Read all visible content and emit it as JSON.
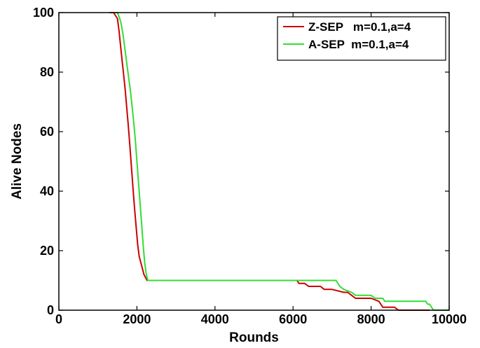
{
  "chart_data": {
    "type": "line",
    "title": "",
    "xlabel": "Rounds",
    "ylabel": "Alive Nodes",
    "xlim": [
      0,
      10000
    ],
    "ylim": [
      0,
      100
    ],
    "xticks": [
      "0",
      "2000",
      "4000",
      "6000",
      "8000",
      "10000"
    ],
    "yticks": [
      "0",
      "20",
      "40",
      "60",
      "80",
      "100"
    ],
    "grid": false,
    "legend_position": "top-right",
    "series": [
      {
        "name": "Z-SEP   m=0.1,a=4",
        "color": "#cc0000",
        "x": [
          1300,
          1400,
          1500,
          1540,
          1580,
          1620,
          1660,
          1700,
          1740,
          1780,
          1820,
          1860,
          1900,
          1940,
          1980,
          2020,
          2060,
          2100,
          2140,
          2180,
          2220,
          2260,
          6100,
          6150,
          6200,
          6300,
          6400,
          6700,
          6800,
          6900,
          7000,
          7300,
          7400,
          7500,
          7600,
          8000,
          8200,
          8250,
          8300,
          8600,
          8700,
          9500
        ],
        "y": [
          100,
          100,
          98,
          94,
          89,
          84,
          79,
          74,
          68,
          62,
          55,
          48,
          41,
          34,
          28,
          22,
          18,
          16,
          14,
          12,
          11,
          10,
          10,
          9,
          9,
          9,
          8,
          8,
          7,
          7,
          7,
          6,
          6,
          5,
          4,
          4,
          3,
          2,
          1,
          1,
          0,
          0
        ]
      },
      {
        "name": "A-SEP  m=0.1,a=4",
        "color": "#33dd33",
        "x": [
          1400,
          1500,
          1560,
          1600,
          1640,
          1680,
          1720,
          1760,
          1800,
          1840,
          1880,
          1920,
          1960,
          2000,
          2040,
          2080,
          2120,
          2160,
          2200,
          2240,
          2280,
          7100,
          7150,
          7200,
          7300,
          7500,
          7600,
          8000,
          8100,
          8300,
          8350,
          8400,
          9000,
          9400,
          9450,
          9500,
          9550,
          9600,
          9700,
          9800,
          10000
        ],
        "y": [
          100,
          100,
          98,
          96,
          93,
          89,
          85,
          81,
          77,
          73,
          68,
          63,
          57,
          50,
          43,
          36,
          29,
          22,
          16,
          12,
          10,
          10,
          9,
          8,
          7,
          6,
          5,
          5,
          4,
          4,
          3,
          3,
          3,
          3,
          2,
          2,
          1,
          0,
          0,
          0,
          0
        ]
      }
    ]
  }
}
